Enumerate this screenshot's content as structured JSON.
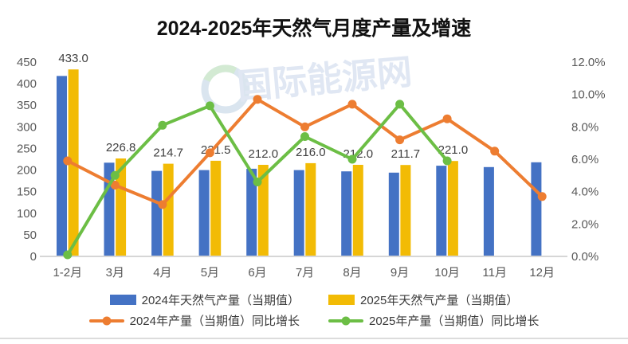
{
  "title": "2024-2025年天然气月度产量及增速",
  "watermark": {
    "text": "国际能源网",
    "color": "#dde5f2",
    "ring_color": "#d7e3ee",
    "leaf_color": "#cfe8cf"
  },
  "styles": {
    "tick_color": "#595959",
    "data_label_color": "#404040",
    "axis_line_color": "#d6d6d6"
  },
  "chart_data": {
    "type": "combo (bar + line, dual axis)",
    "categories": [
      "1-2月",
      "3月",
      "4月",
      "5月",
      "6月",
      "7月",
      "8月",
      "9月",
      "10月",
      "11月",
      "12月"
    ],
    "series": [
      {
        "name": "2024年天然气产量（当期值）",
        "type": "bar",
        "axis": "left",
        "color": "#4472C4",
        "values": [
          418,
          217,
          198,
          200,
          203,
          200,
          197,
          194,
          210,
          207,
          218
        ]
      },
      {
        "name": "2025年天然气产量（当期值）",
        "type": "bar",
        "axis": "left",
        "color": "#F2BB05",
        "values": [
          433.0,
          226.8,
          214.7,
          221.5,
          212.0,
          216.0,
          212.0,
          211.7,
          221.0,
          null,
          null
        ],
        "labels": [
          "433.0",
          "226.8",
          "214.7",
          "221.5",
          "212.0",
          "216.0",
          "212.0",
          "211.7",
          "221.0",
          "",
          ""
        ]
      },
      {
        "name": "2024年产量（当期值）同比增长",
        "type": "line",
        "axis": "right",
        "color": "#ED7D31",
        "values": [
          5.9,
          4.4,
          3.2,
          6.4,
          9.7,
          8.0,
          9.4,
          7.2,
          8.5,
          6.5,
          3.7
        ]
      },
      {
        "name": "2025年产量（当期值）同比增长",
        "type": "line",
        "axis": "right",
        "color": "#6CBE45",
        "values": [
          0.1,
          5.0,
          8.1,
          9.3,
          4.6,
          7.4,
          6.0,
          9.4,
          5.9,
          null,
          null
        ]
      }
    ],
    "left_axis": {
      "min": 0,
      "max": 450,
      "step": 50,
      "ticks": [
        "0",
        "50",
        "100",
        "150",
        "200",
        "250",
        "300",
        "350",
        "400",
        "450"
      ]
    },
    "right_axis": {
      "min": 0,
      "max": 12,
      "step": 2,
      "ticks": [
        "0.0%",
        "2.0%",
        "4.0%",
        "6.0%",
        "8.0%",
        "10.0%",
        "12.0%"
      ]
    },
    "grid": false,
    "legend_position": "bottom"
  }
}
